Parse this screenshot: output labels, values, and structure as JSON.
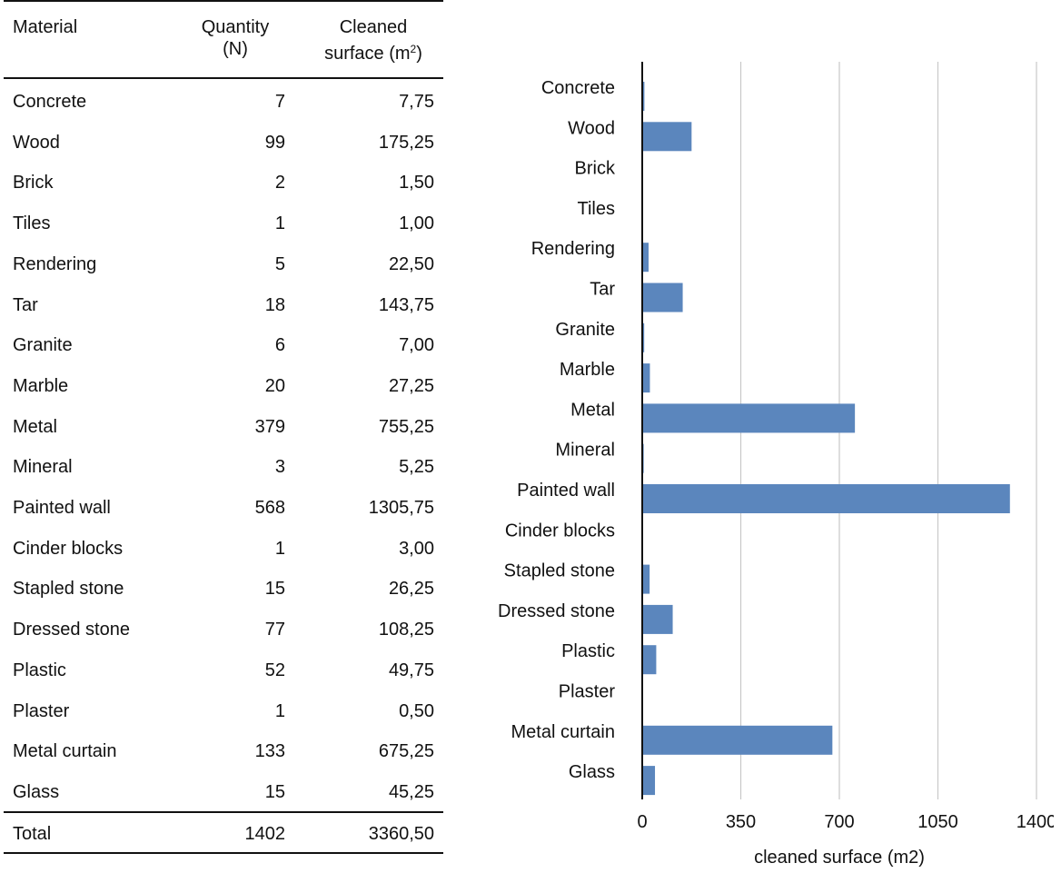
{
  "table": {
    "headers": {
      "material": "Material",
      "quantity_line1": "Quantity",
      "quantity_line2": "(N)",
      "surface_line1": "Cleaned",
      "surface_line2": "surface (m",
      "surface_sup": "2",
      "surface_close": ")"
    },
    "rows": [
      {
        "material": "Concrete",
        "quantity": "7",
        "surface": "7,75"
      },
      {
        "material": "Wood",
        "quantity": "99",
        "surface": "175,25"
      },
      {
        "material": "Brick",
        "quantity": "2",
        "surface": "1,50"
      },
      {
        "material": "Tiles",
        "quantity": "1",
        "surface": "1,00"
      },
      {
        "material": "Rendering",
        "quantity": "5",
        "surface": "22,50"
      },
      {
        "material": "Tar",
        "quantity": "18",
        "surface": "143,75"
      },
      {
        "material": "Granite",
        "quantity": "6",
        "surface": "7,00"
      },
      {
        "material": "Marble",
        "quantity": "20",
        "surface": "27,25"
      },
      {
        "material": "Metal",
        "quantity": "379",
        "surface": "755,25"
      },
      {
        "material": "Mineral",
        "quantity": "3",
        "surface": "5,25"
      },
      {
        "material": "Painted wall",
        "quantity": "568",
        "surface": "1305,75"
      },
      {
        "material": "Cinder blocks",
        "quantity": "1",
        "surface": "3,00"
      },
      {
        "material": "Stapled stone",
        "quantity": "15",
        "surface": "26,25"
      },
      {
        "material": "Dressed stone",
        "quantity": "77",
        "surface": "108,25"
      },
      {
        "material": "Plastic",
        "quantity": "52",
        "surface": "49,75"
      },
      {
        "material": "Plaster",
        "quantity": "1",
        "surface": "0,50"
      },
      {
        "material": "Metal curtain",
        "quantity": "133",
        "surface": "675,25"
      },
      {
        "material": "Glass",
        "quantity": "15",
        "surface": "45,25"
      }
    ],
    "total": {
      "material": "Total",
      "quantity": "1402",
      "surface": "3360,50"
    }
  },
  "chart_data": {
    "type": "bar",
    "orientation": "horizontal",
    "categories": [
      "Concrete",
      "Wood",
      "Brick",
      "Tiles",
      "Rendering",
      "Tar",
      "Granite",
      "Marble",
      "Metal",
      "Mineral",
      "Painted wall",
      "Cinder blocks",
      "Stapled stone",
      "Dressed stone",
      "Plastic",
      "Plaster",
      "Metal curtain",
      "Glass"
    ],
    "values": [
      7.75,
      175.25,
      1.5,
      1.0,
      22.5,
      143.75,
      7.0,
      27.25,
      755.25,
      5.25,
      1305.75,
      3.0,
      26.25,
      108.25,
      49.75,
      0.5,
      675.25,
      45.25
    ],
    "xlabel": "cleaned surface (m2)",
    "ylabel": "",
    "xlim": [
      0,
      1400
    ],
    "xticks": [
      "0",
      "350",
      "700",
      "1050",
      "1400"
    ],
    "grid": "vertical",
    "bar_color": "#5b86bd",
    "grid_color": "#c8c8c8"
  }
}
